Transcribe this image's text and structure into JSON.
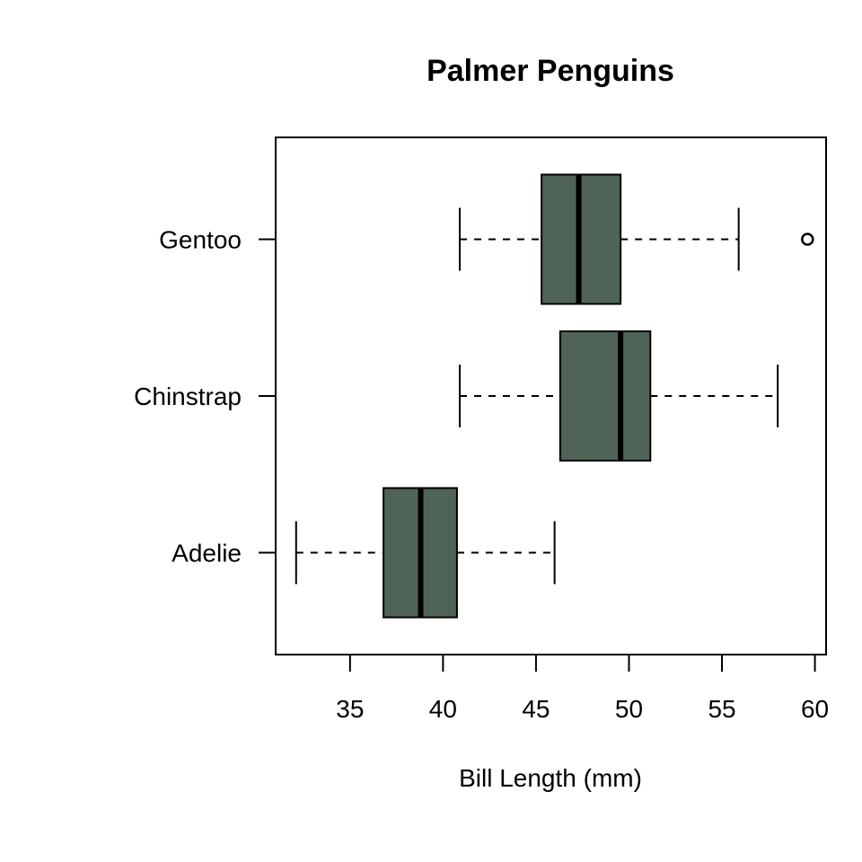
{
  "chart_data": {
    "type": "boxplot",
    "orientation": "horizontal",
    "title": "Palmer Penguins",
    "xlabel": "Bill Length (mm)",
    "ylabel": "",
    "xlim": [
      31,
      60.6
    ],
    "x_ticks": [
      35,
      40,
      45,
      50,
      55,
      60
    ],
    "box_color": "#4f6457",
    "categories": [
      "Adelie",
      "Chinstrap",
      "Gentoo"
    ],
    "boxes": [
      {
        "category": "Adelie",
        "whisker_low": 32.1,
        "q1": 36.8,
        "median": 38.8,
        "q3": 40.75,
        "whisker_high": 46.0,
        "outliers": []
      },
      {
        "category": "Chinstrap",
        "whisker_low": 40.9,
        "q1": 46.3,
        "median": 49.55,
        "q3": 51.15,
        "whisker_high": 58.0,
        "outliers": []
      },
      {
        "category": "Gentoo",
        "whisker_low": 40.9,
        "q1": 45.3,
        "median": 47.3,
        "q3": 49.55,
        "whisker_high": 55.9,
        "outliers": [
          59.6
        ]
      }
    ],
    "grid": false,
    "legend": "none"
  }
}
